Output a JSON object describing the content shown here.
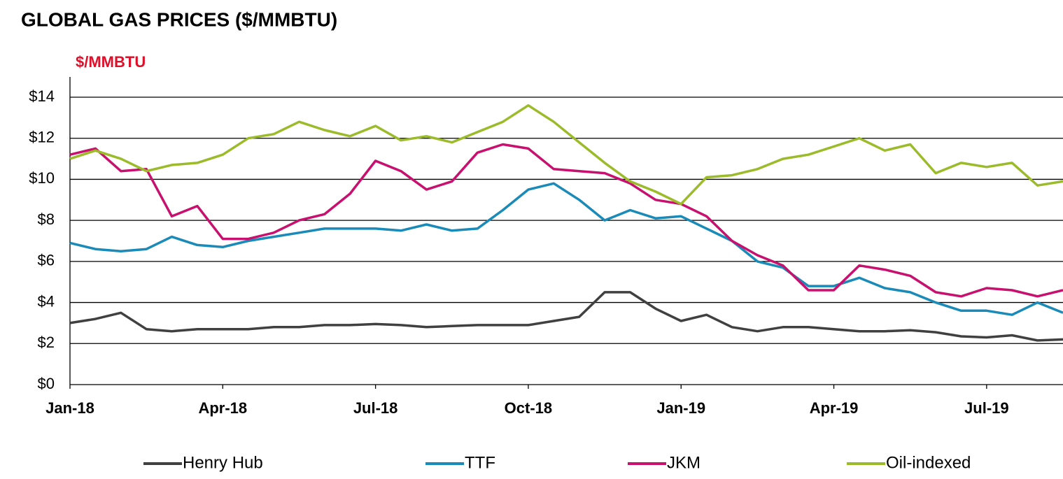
{
  "chart_data": {
    "type": "line",
    "title": "GLOBAL GAS PRICES ($/MMBTU)",
    "y_label": "$/MMBTU",
    "categories": [
      "Jan-18",
      null,
      null,
      null,
      null,
      null,
      "Apr-18",
      null,
      null,
      null,
      null,
      null,
      "Jul-18",
      null,
      null,
      null,
      null,
      null,
      "Oct-18",
      null,
      null,
      null,
      null,
      null,
      "Jan-19",
      null,
      null,
      null,
      null,
      null,
      "Apr-19",
      null,
      null,
      null,
      null,
      null,
      "Jul-19",
      null,
      null,
      null
    ],
    "series": [
      {
        "name": "Henry Hub",
        "color": "#404040",
        "values": [
          3.0,
          3.2,
          3.5,
          2.7,
          2.6,
          2.7,
          2.7,
          2.7,
          2.8,
          2.8,
          2.9,
          2.9,
          2.95,
          2.9,
          2.8,
          2.85,
          2.9,
          2.9,
          2.9,
          3.1,
          3.3,
          4.5,
          4.5,
          3.7,
          3.1,
          3.4,
          2.8,
          2.6,
          2.8,
          2.8,
          2.7,
          2.6,
          2.6,
          2.65,
          2.55,
          2.35,
          2.3,
          2.4,
          2.15,
          2.2
        ]
      },
      {
        "name": "TTF",
        "color": "#1a8ab8",
        "values": [
          6.9,
          6.6,
          6.5,
          6.6,
          7.2,
          6.8,
          6.7,
          7.0,
          7.2,
          7.4,
          7.6,
          7.6,
          7.6,
          7.5,
          7.8,
          7.5,
          7.6,
          8.5,
          9.5,
          9.8,
          9.0,
          8.0,
          8.5,
          8.1,
          8.2,
          7.6,
          7.0,
          6.0,
          5.7,
          4.8,
          4.8,
          5.2,
          4.7,
          4.5,
          4.0,
          3.6,
          3.6,
          3.4,
          4.0,
          3.5
        ]
      },
      {
        "name": "JKM",
        "color": "#c8106e",
        "values": [
          11.2,
          11.5,
          10.4,
          10.5,
          8.2,
          8.7,
          7.1,
          7.1,
          7.4,
          8.0,
          8.3,
          9.3,
          10.9,
          10.4,
          9.5,
          9.9,
          11.3,
          11.7,
          11.5,
          10.5,
          10.4,
          10.3,
          9.8,
          9.0,
          8.8,
          8.2,
          7.0,
          6.3,
          5.8,
          4.6,
          4.6,
          5.8,
          5.6,
          5.3,
          4.5,
          4.3,
          4.7,
          4.6,
          4.3,
          4.6
        ]
      },
      {
        "name": "Oil-indexed",
        "color": "#9bbb2a",
        "values": [
          11.0,
          11.4,
          11.0,
          10.4,
          10.7,
          10.8,
          11.2,
          12.0,
          12.2,
          12.8,
          12.4,
          12.1,
          12.6,
          11.9,
          12.1,
          11.8,
          12.3,
          12.8,
          13.6,
          12.8,
          11.8,
          10.8,
          9.9,
          9.4,
          8.8,
          10.1,
          10.2,
          10.5,
          11.0,
          11.2,
          11.6,
          12.0,
          11.4,
          11.7,
          10.3,
          10.8,
          10.6,
          10.8,
          9.7,
          9.9
        ]
      }
    ],
    "ylim": [
      0,
      14
    ],
    "yticks": [
      {
        "value": 0,
        "label": "$0"
      },
      {
        "value": 2,
        "label": "$2"
      },
      {
        "value": 4,
        "label": "$4"
      },
      {
        "value": 6,
        "label": "$6"
      },
      {
        "value": 8,
        "label": "$8"
      },
      {
        "value": 10,
        "label": "$10"
      },
      {
        "value": 12,
        "label": "$12"
      },
      {
        "value": 14,
        "label": "$14"
      }
    ],
    "grid": true,
    "legend": "bottom"
  }
}
